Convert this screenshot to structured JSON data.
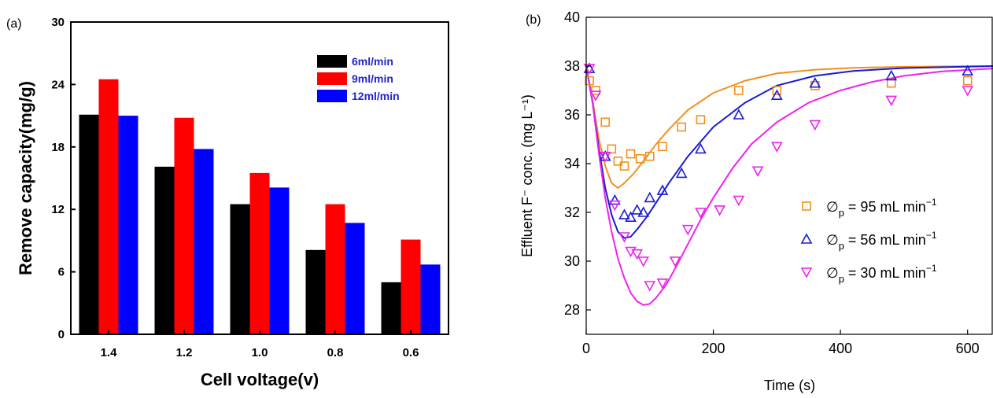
{
  "chart_data": [
    {
      "panel_label": "(a)",
      "type": "bar",
      "xlabel": "Cell voltage(v)",
      "ylabel": "Remove capacity(mg/g)",
      "ylim": [
        0,
        30
      ],
      "yticks": [
        "0",
        "6",
        "12",
        "18",
        "24",
        "30"
      ],
      "categories": [
        "1.4",
        "1.2",
        "1.0",
        "0.8",
        "0.6"
      ],
      "legend_position": "top-right",
      "series": [
        {
          "name": "6ml/min",
          "color": "#000000",
          "values": [
            21.1,
            16.1,
            12.5,
            8.1,
            5.0
          ]
        },
        {
          "name": "9ml/min",
          "color": "#ff0000",
          "values": [
            24.5,
            20.8,
            15.5,
            12.5,
            9.1
          ]
        },
        {
          "name": "12ml/min",
          "color": "#0000ff",
          "values": [
            21.0,
            17.8,
            14.1,
            10.7,
            6.7
          ]
        }
      ],
      "legend_text_color": "#2424c8"
    },
    {
      "panel_label": "(b)",
      "type": "scatter",
      "xlabel": "Time (s)",
      "ylabel": "Effluent F⁻ conc. (mg L⁻¹)",
      "xlim": [
        0,
        640
      ],
      "ylim": [
        27,
        40
      ],
      "xticks": [
        "0",
        "200",
        "400",
        "600"
      ],
      "yticks": [
        "28",
        "30",
        "32",
        "34",
        "36",
        "38",
        "40"
      ],
      "legend_position": "center-right",
      "series": [
        {
          "name": "∅p = 95 mL min⁻¹",
          "legend_main": "∅",
          "legend_sub": "p",
          "legend_rest": " = 95 mL min",
          "legend_sup": "−1",
          "marker": "square",
          "color": "#f0901e",
          "points": [
            [
              5,
              37.4
            ],
            [
              15,
              37.0
            ],
            [
              30,
              35.7
            ],
            [
              40,
              34.6
            ],
            [
              50,
              34.1
            ],
            [
              60,
              33.9
            ],
            [
              70,
              34.4
            ],
            [
              85,
              34.2
            ],
            [
              100,
              34.3
            ],
            [
              120,
              34.7
            ],
            [
              150,
              35.5
            ],
            [
              180,
              35.8
            ],
            [
              240,
              37.0
            ],
            [
              300,
              37.0
            ],
            [
              360,
              37.2
            ],
            [
              480,
              37.3
            ],
            [
              600,
              37.4
            ]
          ],
          "fit": [
            [
              0,
              38.0
            ],
            [
              10,
              36.6
            ],
            [
              20,
              35.0
            ],
            [
              30,
              33.9
            ],
            [
              40,
              33.2
            ],
            [
              50,
              33.0
            ],
            [
              60,
              33.2
            ],
            [
              75,
              33.6
            ],
            [
              90,
              34.1
            ],
            [
              110,
              34.8
            ],
            [
              130,
              35.4
            ],
            [
              160,
              36.2
            ],
            [
              200,
              36.9
            ],
            [
              250,
              37.4
            ],
            [
              300,
              37.7
            ],
            [
              360,
              37.85
            ],
            [
              420,
              37.93
            ],
            [
              500,
              37.97
            ],
            [
              640,
              38.0
            ]
          ]
        },
        {
          "name": "∅p = 56 mL min⁻¹",
          "legend_main": "∅",
          "legend_sub": "p",
          "legend_rest": " = 56 mL min",
          "legend_sup": "−1",
          "marker": "triangle-up",
          "color": "#1a1ad6",
          "points": [
            [
              5,
              37.9
            ],
            [
              30,
              34.3
            ],
            [
              45,
              32.5
            ],
            [
              60,
              31.9
            ],
            [
              70,
              31.8
            ],
            [
              80,
              32.1
            ],
            [
              90,
              32.0
            ],
            [
              100,
              32.6
            ],
            [
              120,
              32.9
            ],
            [
              150,
              33.6
            ],
            [
              180,
              34.6
            ],
            [
              240,
              36.0
            ],
            [
              300,
              36.8
            ],
            [
              360,
              37.3
            ],
            [
              480,
              37.6
            ],
            [
              600,
              37.8
            ]
          ],
          "fit": [
            [
              0,
              38.0
            ],
            [
              10,
              36.5
            ],
            [
              20,
              34.6
            ],
            [
              30,
              33.0
            ],
            [
              40,
              31.9
            ],
            [
              50,
              31.2
            ],
            [
              60,
              30.95
            ],
            [
              70,
              31.0
            ],
            [
              80,
              31.3
            ],
            [
              95,
              31.8
            ],
            [
              110,
              32.4
            ],
            [
              130,
              33.2
            ],
            [
              160,
              34.3
            ],
            [
              200,
              35.5
            ],
            [
              250,
              36.5
            ],
            [
              300,
              37.2
            ],
            [
              360,
              37.6
            ],
            [
              420,
              37.8
            ],
            [
              500,
              37.92
            ],
            [
              640,
              38.0
            ]
          ]
        },
        {
          "name": "∅p = 30 mL min⁻¹",
          "legend_main": "∅",
          "legend_sub": "p",
          "legend_rest": " = 30 mL min",
          "legend_sup": "−1",
          "marker": "triangle-down",
          "color": "#ee22ee",
          "points": [
            [
              5,
              37.9
            ],
            [
              15,
              36.8
            ],
            [
              30,
              34.3
            ],
            [
              45,
              32.3
            ],
            [
              60,
              31.0
            ],
            [
              70,
              30.4
            ],
            [
              80,
              30.3
            ],
            [
              90,
              30.0
            ],
            [
              100,
              29.0
            ],
            [
              120,
              29.1
            ],
            [
              140,
              30.0
            ],
            [
              160,
              31.3
            ],
            [
              180,
              32.0
            ],
            [
              210,
              32.1
            ],
            [
              240,
              32.5
            ],
            [
              270,
              33.7
            ],
            [
              300,
              34.7
            ],
            [
              360,
              35.6
            ],
            [
              480,
              36.6
            ],
            [
              600,
              37.0
            ]
          ],
          "fit": [
            [
              0,
              38.0
            ],
            [
              10,
              36.5
            ],
            [
              20,
              34.4
            ],
            [
              30,
              32.6
            ],
            [
              40,
              31.2
            ],
            [
              50,
              30.1
            ],
            [
              60,
              29.3
            ],
            [
              70,
              28.7
            ],
            [
              80,
              28.35
            ],
            [
              90,
              28.2
            ],
            [
              100,
              28.25
            ],
            [
              110,
              28.5
            ],
            [
              125,
              29.0
            ],
            [
              140,
              29.7
            ],
            [
              160,
              30.7
            ],
            [
              180,
              31.7
            ],
            [
              200,
              32.6
            ],
            [
              230,
              33.8
            ],
            [
              260,
              34.8
            ],
            [
              300,
              35.7
            ],
            [
              350,
              36.5
            ],
            [
              400,
              37.0
            ],
            [
              450,
              37.35
            ],
            [
              500,
              37.6
            ],
            [
              560,
              37.78
            ],
            [
              640,
              37.9
            ]
          ]
        }
      ]
    }
  ]
}
